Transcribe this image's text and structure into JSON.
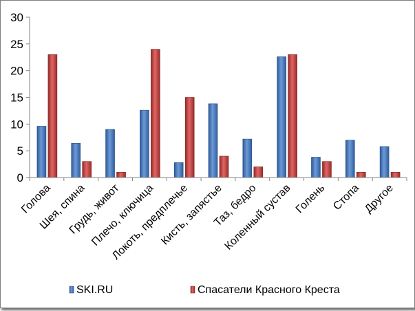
{
  "chart_data": {
    "type": "bar",
    "title": "",
    "xlabel": "",
    "ylabel": "",
    "ylim": [
      0,
      30
    ],
    "yticks": [
      0,
      5,
      10,
      15,
      20,
      25,
      30
    ],
    "grid": false,
    "legend_position": "bottom",
    "categories": [
      "Голова",
      "Шея, спина",
      "Грудь, живот",
      "Плечо, ключица",
      "Локоть, предплечье",
      "Кисть, запястье",
      "Таз, бедро",
      "Коленный сустав",
      "Голень",
      "Стопа",
      "Другое"
    ],
    "series": [
      {
        "name": "SKI.RU",
        "color": "#4f81bd",
        "values": [
          9.6,
          6.4,
          9.0,
          12.6,
          2.8,
          13.8,
          7.2,
          22.6,
          3.8,
          7.0,
          5.8
        ]
      },
      {
        "name": "Спасатели Красного Креста",
        "color": "#c0504d",
        "values": [
          23,
          3,
          1,
          24,
          15,
          4,
          2,
          23,
          3,
          1,
          1
        ]
      }
    ]
  }
}
